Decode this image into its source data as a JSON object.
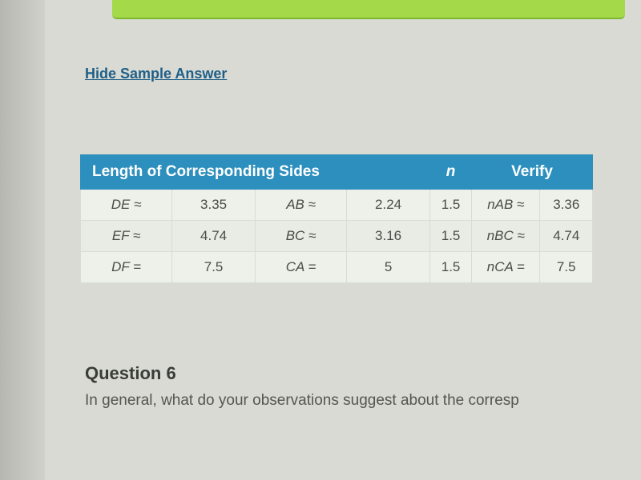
{
  "link": {
    "hide_sample_answer": "Hide Sample Answer"
  },
  "table": {
    "headers": {
      "length": "Length of Corresponding Sides",
      "n": "n",
      "verify": "Verify"
    },
    "rows": [
      {
        "seg1": "DE ≈",
        "val1": "3.35",
        "seg2": "AB ≈",
        "val2": "2.24",
        "n": "1.5",
        "vlabel": "nAB ≈",
        "vval": "3.36"
      },
      {
        "seg1": "EF ≈",
        "val1": "4.74",
        "seg2": "BC ≈",
        "val2": "3.16",
        "n": "1.5",
        "vlabel": "nBC ≈",
        "vval": "4.74"
      },
      {
        "seg1": "DF =",
        "val1": "7.5",
        "seg2": "CA =",
        "val2": "5",
        "n": "1.5",
        "vlabel": "nCA =",
        "vval": "7.5"
      }
    ]
  },
  "question": {
    "title": "Question 6",
    "text": "In general, what do your observations suggest about the corresp"
  },
  "style": {
    "header_bg": "#2c8fbd",
    "header_fg": "#ffffff",
    "row_bg": "#eef0ea",
    "row_alt_bg": "#e9ebe5",
    "border": "#d8dcd8",
    "link_color": "#1f5f88",
    "page_bg": "#d8dad3",
    "green_banner": "#a4d94a"
  }
}
